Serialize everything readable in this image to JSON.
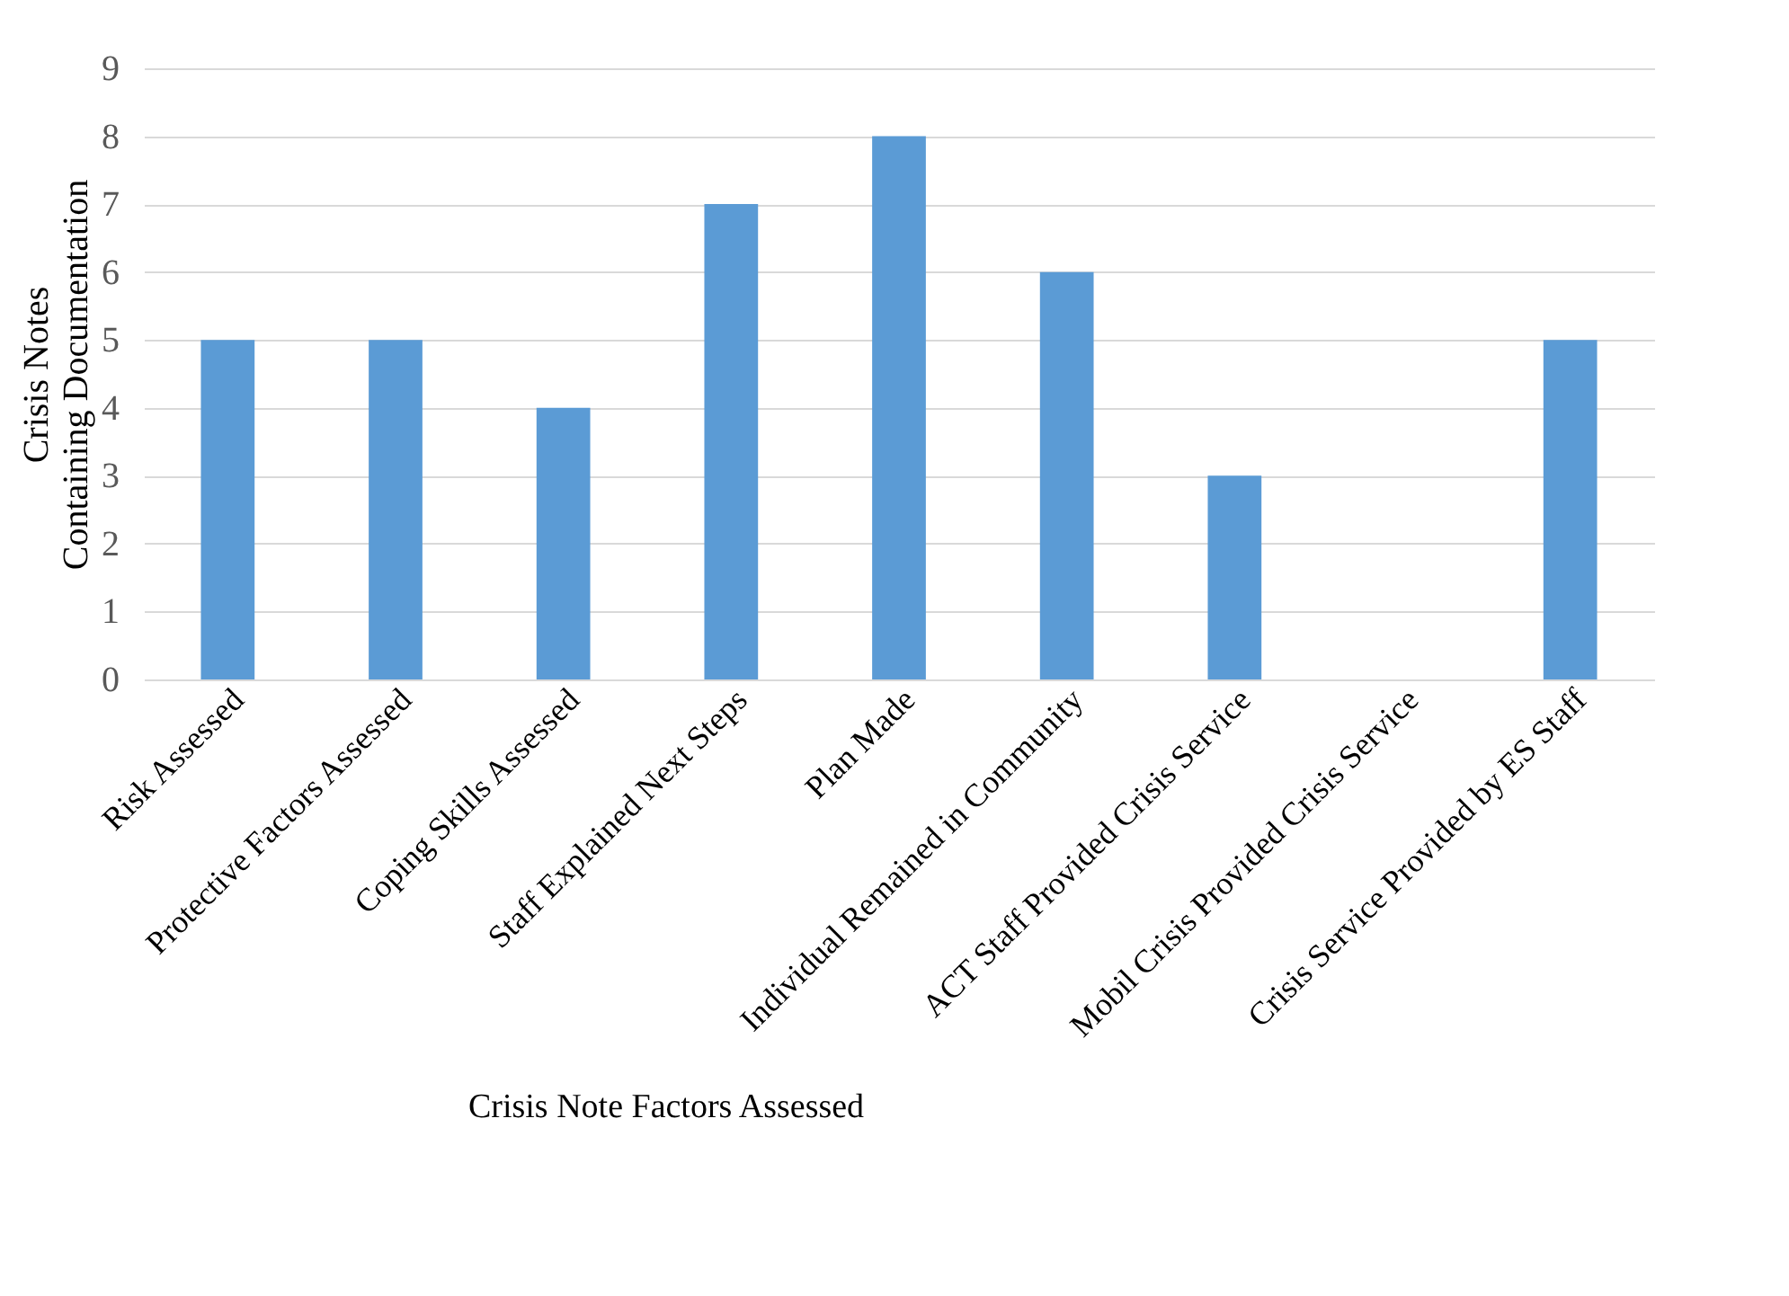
{
  "chart_data": {
    "type": "bar",
    "xlabel": "Crisis Note Factors Assessed",
    "ylabel": "Crisis Notes\nContaining Documentation",
    "categories": [
      "Risk Assessed",
      "Protective Factors Assessed",
      "Coping Skills Assessed",
      "Staff Explained Next Steps",
      "Plan Made",
      "Individual Remained in Community",
      "ACT Staff Provided Crisis Service",
      "Mobil Crisis Provided Crisis Service",
      "Crisis Service Provided by ES Staff"
    ],
    "values": [
      5,
      5,
      4,
      7,
      8,
      6,
      3,
      0,
      5
    ],
    "color": "#5b9bd5",
    "ylim": [
      0,
      9
    ],
    "yticks": [
      0,
      1,
      2,
      3,
      4,
      5,
      6,
      7,
      8,
      9
    ],
    "grid": "y"
  }
}
